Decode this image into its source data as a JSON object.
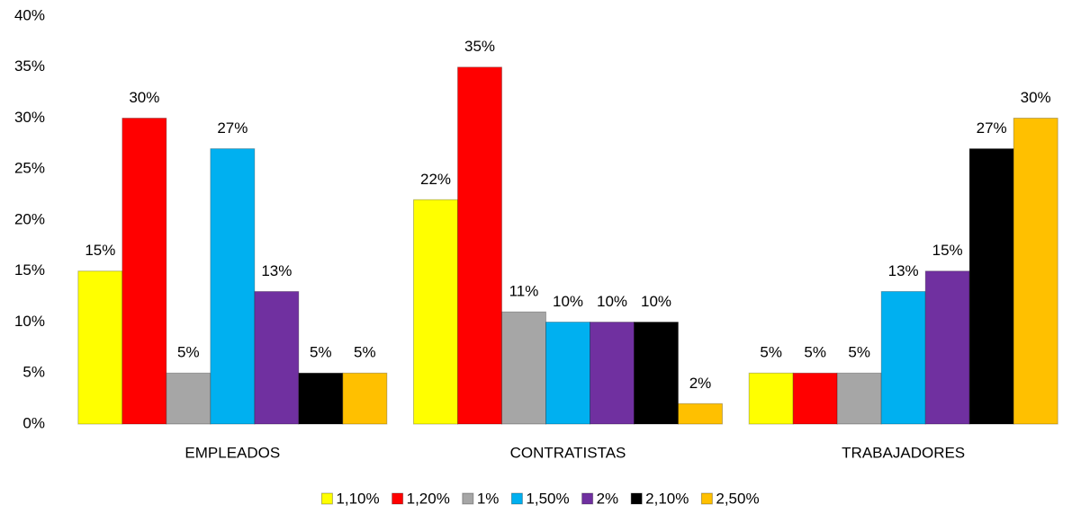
{
  "chart_data": {
    "type": "bar",
    "categories": [
      "EMPLEADOS",
      "CONTRATISTAS",
      "TRABAJADORES"
    ],
    "series": [
      {
        "name": "1,10%",
        "color": "#ffff00",
        "values": [
          15,
          22,
          5
        ],
        "value_labels": [
          "15%",
          "22%",
          "5%"
        ]
      },
      {
        "name": "1,20%",
        "color": "#ff0000",
        "values": [
          30,
          35,
          5
        ],
        "value_labels": [
          "30%",
          "35%",
          "5%"
        ]
      },
      {
        "name": "1%",
        "color": "#a6a6a6",
        "values": [
          5,
          11,
          5
        ],
        "value_labels": [
          "5%",
          "11%",
          "5%"
        ]
      },
      {
        "name": "1,50%",
        "color": "#00b0f0",
        "values": [
          27,
          10,
          13
        ],
        "value_labels": [
          "27%",
          "10%",
          "13%"
        ]
      },
      {
        "name": "2%",
        "color": "#7030a0",
        "values": [
          13,
          10,
          15
        ],
        "value_labels": [
          "13%",
          "10%",
          "15%"
        ]
      },
      {
        "name": "2,10%",
        "color": "#000000",
        "values": [
          5,
          10,
          27
        ],
        "value_labels": [
          "5%",
          "10%",
          "27%"
        ]
      },
      {
        "name": "2,50%",
        "color": "#ffc000",
        "values": [
          5,
          2,
          30
        ],
        "value_labels": [
          "5%",
          "2%",
          "30%"
        ]
      }
    ],
    "ylim": [
      0,
      40
    ],
    "yticks": [
      {
        "value": 0,
        "label": "0%"
      },
      {
        "value": 5,
        "label": "5%"
      },
      {
        "value": 10,
        "label": "10%"
      },
      {
        "value": 15,
        "label": "15%"
      },
      {
        "value": 20,
        "label": "20%"
      },
      {
        "value": 25,
        "label": "25%"
      },
      {
        "value": 30,
        "label": "30%"
      },
      {
        "value": 35,
        "label": "35%"
      },
      {
        "value": 40,
        "label": "40%"
      }
    ],
    "legend": "bottom",
    "grid": false
  }
}
